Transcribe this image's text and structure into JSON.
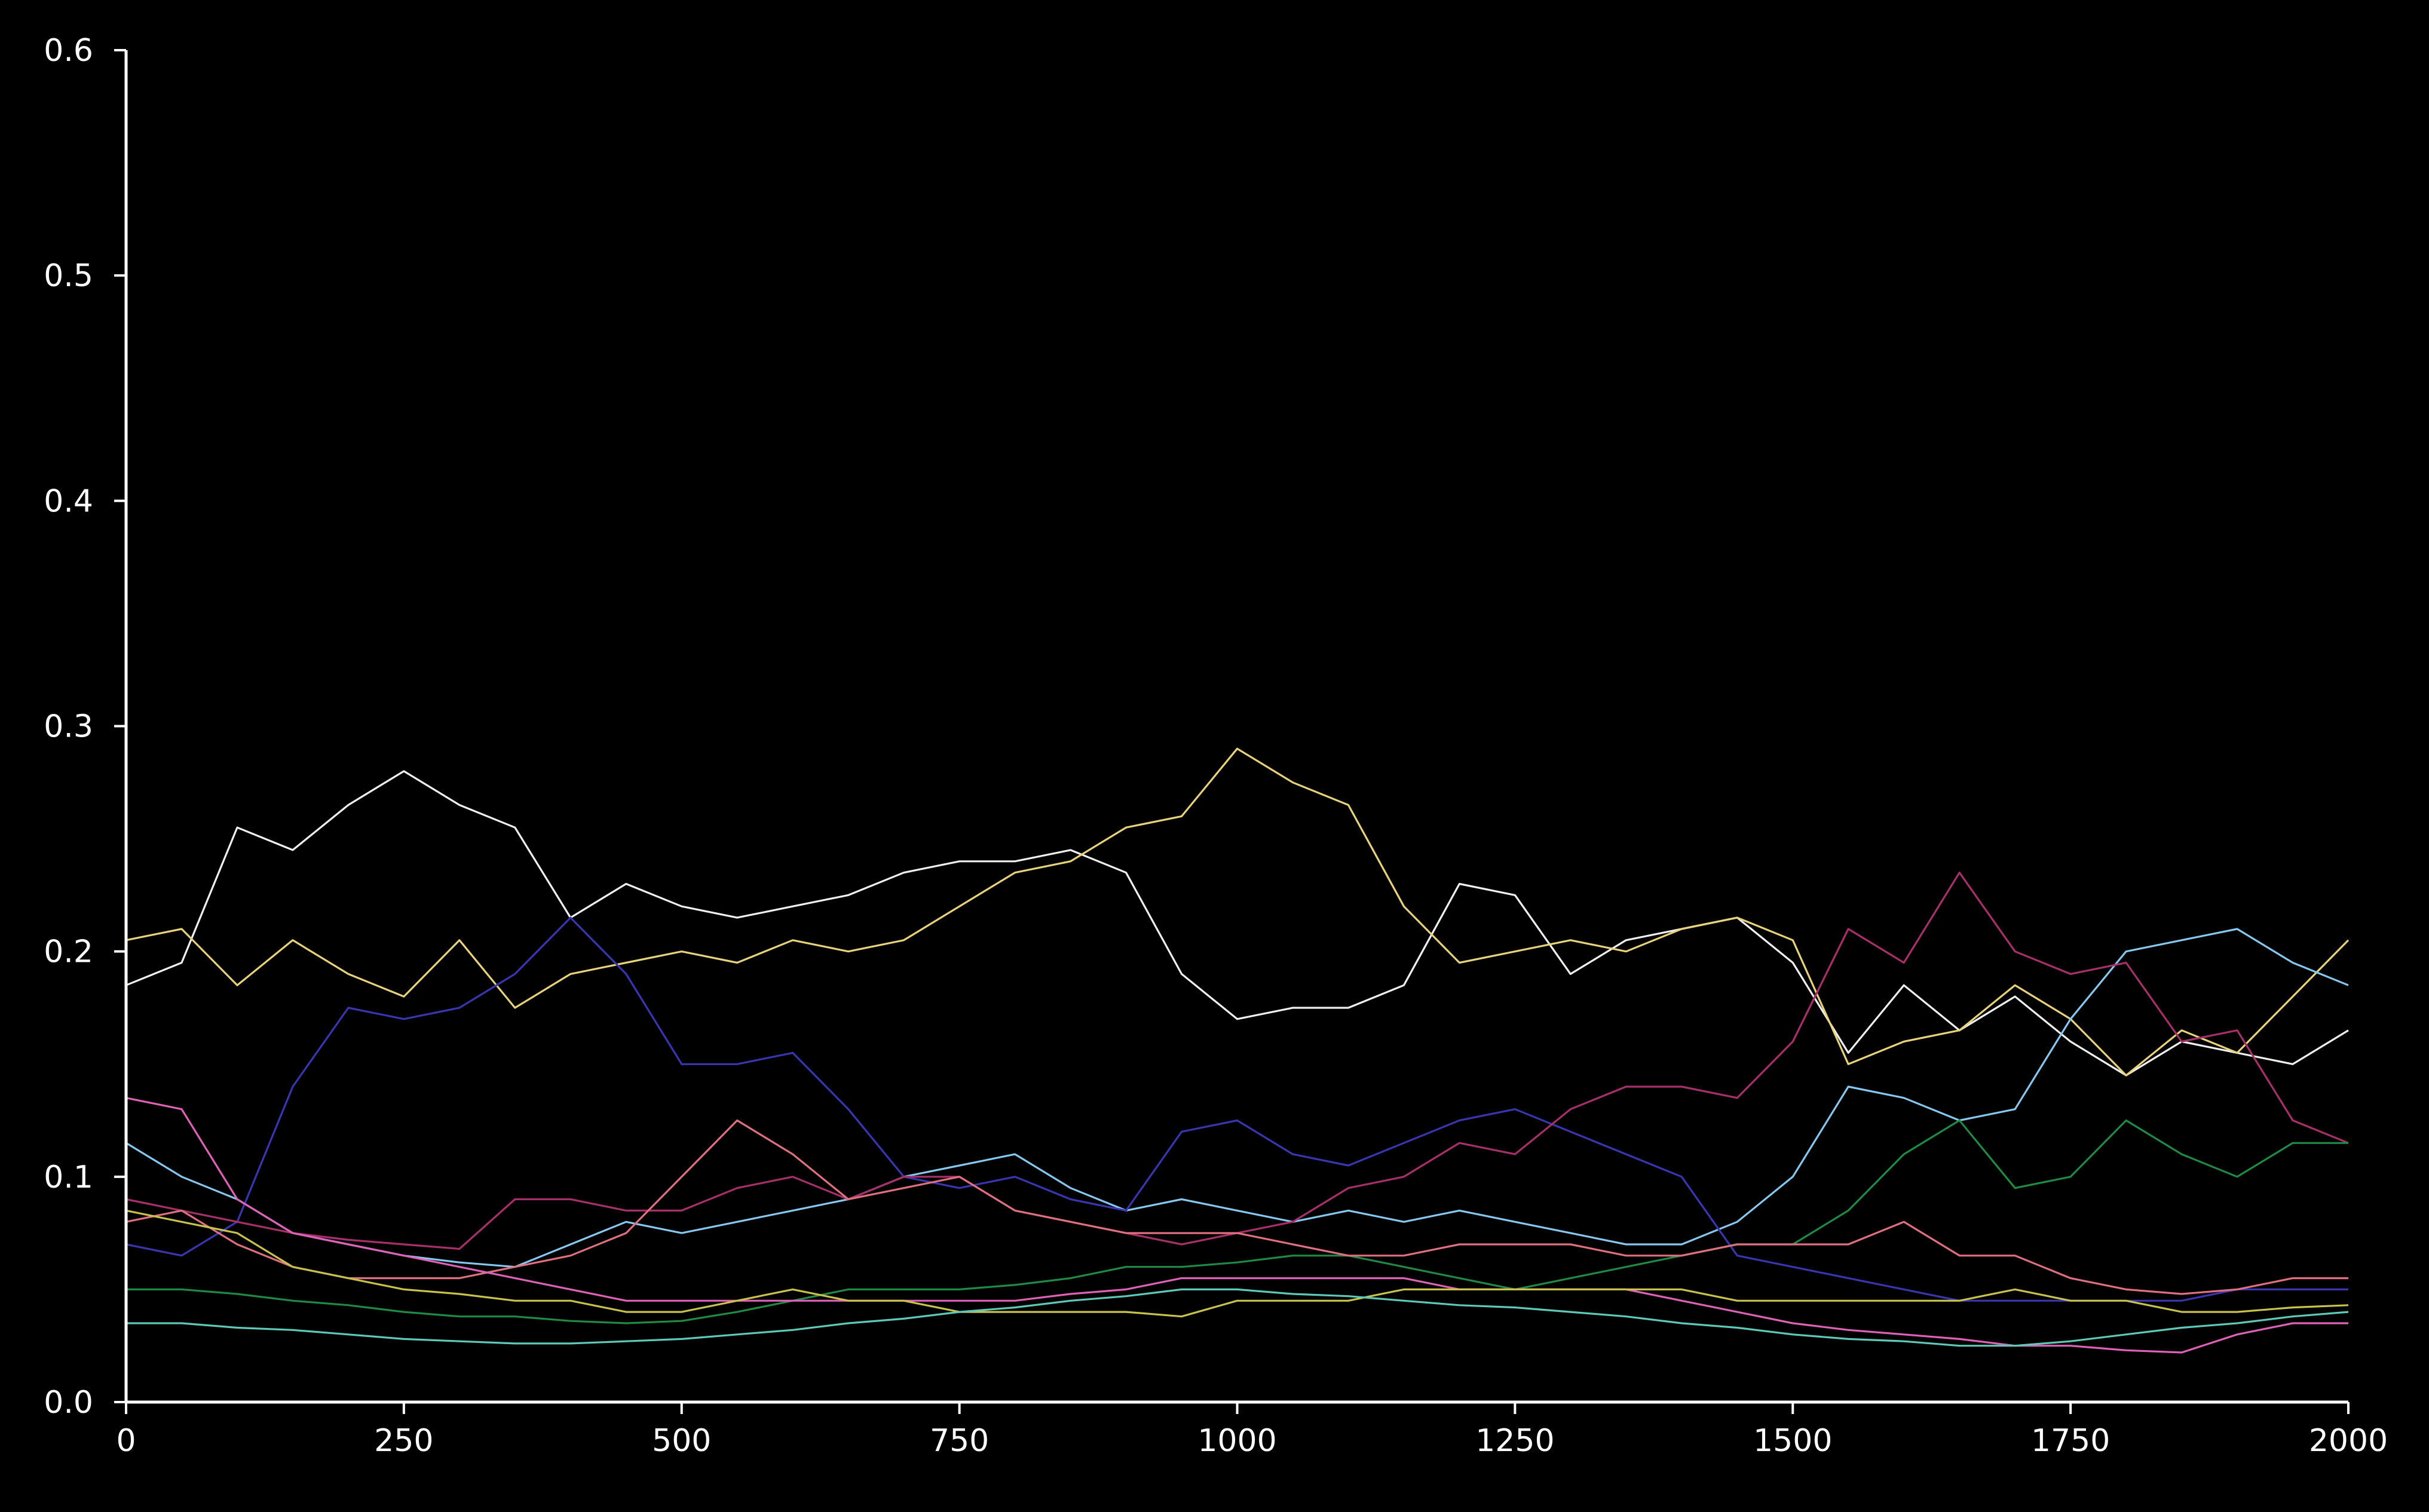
{
  "chart_data": {
    "type": "line",
    "title": "",
    "xlabel": "",
    "ylabel": "",
    "xlim": [
      0,
      2000
    ],
    "ylim": [
      0,
      0.6
    ],
    "grid": false,
    "legend": "none",
    "background": "#000000",
    "axis_color": "#ffffff",
    "x_ticks": [
      0,
      250,
      500,
      750,
      1000,
      1250,
      1500,
      1750,
      2000
    ],
    "x_tick_labels": [
      "0",
      "250",
      "500",
      "750",
      "1000",
      "1250",
      "1500",
      "1750",
      "2000"
    ],
    "y_ticks": [
      0.0,
      0.1,
      0.2,
      0.3,
      0.4,
      0.5,
      0.6
    ],
    "y_tick_labels": [
      "0.0",
      "0.1",
      "0.2",
      "0.3",
      "0.4",
      "0.5",
      "0.6"
    ],
    "x": [
      0,
      50,
      100,
      150,
      200,
      250,
      300,
      350,
      400,
      450,
      500,
      550,
      600,
      650,
      700,
      750,
      800,
      850,
      900,
      950,
      1000,
      1050,
      1100,
      1150,
      1200,
      1250,
      1300,
      1350,
      1400,
      1450,
      1500,
      1550,
      1600,
      1650,
      1700,
      1750,
      1800,
      1850,
      1900,
      1950,
      2000
    ],
    "series": [
      {
        "color": "#f0f0f0",
        "values": [
          0.185,
          0.195,
          0.255,
          0.245,
          0.265,
          0.28,
          0.265,
          0.255,
          0.215,
          0.23,
          0.22,
          0.215,
          0.22,
          0.225,
          0.235,
          0.24,
          0.24,
          0.245,
          0.235,
          0.19,
          0.17,
          0.175,
          0.175,
          0.185,
          0.23,
          0.225,
          0.19,
          0.205,
          0.21,
          0.215,
          0.195,
          0.155,
          0.185,
          0.165,
          0.18,
          0.16,
          0.145,
          0.16,
          0.155,
          0.15,
          0.165
        ]
      },
      {
        "color": "#e8d37a",
        "values": [
          0.205,
          0.21,
          0.185,
          0.205,
          0.19,
          0.18,
          0.205,
          0.175,
          0.19,
          0.195,
          0.2,
          0.195,
          0.205,
          0.2,
          0.205,
          0.22,
          0.235,
          0.24,
          0.255,
          0.26,
          0.29,
          0.275,
          0.265,
          0.22,
          0.195,
          0.2,
          0.205,
          0.2,
          0.21,
          0.215,
          0.205,
          0.15,
          0.16,
          0.165,
          0.185,
          0.17,
          0.145,
          0.165,
          0.155,
          0.18,
          0.205
        ]
      },
      {
        "color": "#86c8f0",
        "values": [
          0.115,
          0.1,
          0.09,
          0.075,
          0.07,
          0.065,
          0.062,
          0.06,
          0.07,
          0.08,
          0.075,
          0.08,
          0.085,
          0.09,
          0.1,
          0.105,
          0.11,
          0.095,
          0.085,
          0.09,
          0.085,
          0.08,
          0.085,
          0.08,
          0.085,
          0.08,
          0.075,
          0.07,
          0.07,
          0.08,
          0.1,
          0.14,
          0.135,
          0.125,
          0.13,
          0.17,
          0.2,
          0.205,
          0.21,
          0.195,
          0.185
        ]
      },
      {
        "color": "#3a35b0",
        "values": [
          0.07,
          0.065,
          0.08,
          0.14,
          0.175,
          0.17,
          0.175,
          0.19,
          0.215,
          0.19,
          0.15,
          0.15,
          0.155,
          0.13,
          0.1,
          0.095,
          0.1,
          0.09,
          0.085,
          0.12,
          0.125,
          0.11,
          0.105,
          0.115,
          0.125,
          0.13,
          0.12,
          0.11,
          0.1,
          0.065,
          0.06,
          0.055,
          0.05,
          0.045,
          0.045,
          0.045,
          0.045,
          0.045,
          0.05,
          0.05,
          0.05
        ]
      },
      {
        "color": "#a8306a",
        "values": [
          0.09,
          0.085,
          0.08,
          0.075,
          0.072,
          0.07,
          0.068,
          0.09,
          0.09,
          0.085,
          0.085,
          0.095,
          0.1,
          0.09,
          0.1,
          0.1,
          0.085,
          0.08,
          0.075,
          0.07,
          0.075,
          0.08,
          0.095,
          0.1,
          0.115,
          0.11,
          0.13,
          0.14,
          0.14,
          0.135,
          0.16,
          0.21,
          0.195,
          0.235,
          0.2,
          0.19,
          0.195,
          0.16,
          0.165,
          0.125,
          0.115
        ]
      },
      {
        "color": "#1e8a44",
        "values": [
          0.05,
          0.05,
          0.048,
          0.045,
          0.043,
          0.04,
          0.038,
          0.038,
          0.036,
          0.035,
          0.036,
          0.04,
          0.045,
          0.05,
          0.05,
          0.05,
          0.052,
          0.055,
          0.06,
          0.06,
          0.062,
          0.065,
          0.065,
          0.06,
          0.055,
          0.05,
          0.055,
          0.06,
          0.065,
          0.07,
          0.07,
          0.085,
          0.11,
          0.125,
          0.095,
          0.1,
          0.125,
          0.11,
          0.1,
          0.115,
          0.115
        ]
      },
      {
        "color": "#e07080",
        "values": [
          0.08,
          0.085,
          0.07,
          0.06,
          0.055,
          0.055,
          0.055,
          0.06,
          0.065,
          0.075,
          0.1,
          0.125,
          0.11,
          0.09,
          0.095,
          0.1,
          0.085,
          0.08,
          0.075,
          0.075,
          0.075,
          0.07,
          0.065,
          0.065,
          0.07,
          0.07,
          0.07,
          0.065,
          0.065,
          0.07,
          0.07,
          0.07,
          0.08,
          0.065,
          0.065,
          0.055,
          0.05,
          0.048,
          0.05,
          0.055,
          0.055
        ]
      },
      {
        "color": "#e062b8",
        "values": [
          0.135,
          0.13,
          0.09,
          0.075,
          0.07,
          0.065,
          0.06,
          0.055,
          0.05,
          0.045,
          0.045,
          0.045,
          0.045,
          0.045,
          0.045,
          0.045,
          0.045,
          0.048,
          0.05,
          0.055,
          0.055,
          0.055,
          0.055,
          0.055,
          0.05,
          0.05,
          0.05,
          0.05,
          0.045,
          0.04,
          0.035,
          0.032,
          0.03,
          0.028,
          0.025,
          0.025,
          0.023,
          0.022,
          0.03,
          0.035,
          0.035
        ]
      },
      {
        "color": "#c9c24a",
        "values": [
          0.085,
          0.08,
          0.075,
          0.06,
          0.055,
          0.05,
          0.048,
          0.045,
          0.045,
          0.04,
          0.04,
          0.045,
          0.05,
          0.045,
          0.045,
          0.04,
          0.04,
          0.04,
          0.04,
          0.038,
          0.045,
          0.045,
          0.045,
          0.05,
          0.05,
          0.05,
          0.05,
          0.05,
          0.05,
          0.045,
          0.045,
          0.045,
          0.045,
          0.045,
          0.05,
          0.045,
          0.045,
          0.04,
          0.04,
          0.042,
          0.043
        ]
      },
      {
        "color": "#5ec9b8",
        "values": [
          0.035,
          0.035,
          0.033,
          0.032,
          0.03,
          0.028,
          0.027,
          0.026,
          0.026,
          0.027,
          0.028,
          0.03,
          0.032,
          0.035,
          0.037,
          0.04,
          0.042,
          0.045,
          0.047,
          0.05,
          0.05,
          0.048,
          0.047,
          0.045,
          0.043,
          0.042,
          0.04,
          0.038,
          0.035,
          0.033,
          0.03,
          0.028,
          0.027,
          0.025,
          0.025,
          0.027,
          0.03,
          0.033,
          0.035,
          0.038,
          0.04
        ]
      }
    ]
  }
}
